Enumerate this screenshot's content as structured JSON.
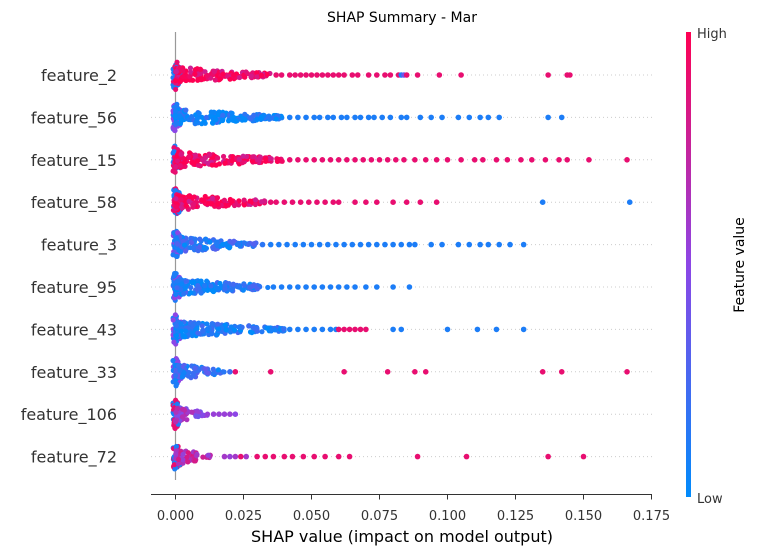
{
  "chart_data": {
    "type": "scatter",
    "title": "SHAP Summary - Mar",
    "xlabel": "SHAP value (impact on model output)",
    "xlim": [
      -0.009,
      0.175
    ],
    "xticks": [
      "0.000",
      "0.025",
      "0.050",
      "0.075",
      "0.100",
      "0.125",
      "0.150",
      "0.175"
    ],
    "xtick_values": [
      0,
      0.025,
      0.05,
      0.075,
      0.1,
      0.125,
      0.15,
      0.175
    ],
    "colorbar": {
      "label": "Feature value",
      "high": "High",
      "low": "Low",
      "low_color": "#008bfb",
      "high_color": "#ff0052"
    },
    "features": [
      {
        "name": "feature_2",
        "dense_max": 0.035,
        "dense_color": 0.95,
        "points": [
          [
            0.037,
            0.9
          ],
          [
            0.039,
            0.9
          ],
          [
            0.042,
            0.9
          ],
          [
            0.044,
            0.9
          ],
          [
            0.046,
            0.9
          ],
          [
            0.048,
            0.9
          ],
          [
            0.05,
            0.9
          ],
          [
            0.052,
            0.9
          ],
          [
            0.054,
            0.9
          ],
          [
            0.056,
            0.9
          ],
          [
            0.058,
            0.9
          ],
          [
            0.06,
            0.9
          ],
          [
            0.062,
            0.9
          ],
          [
            0.065,
            0.9
          ],
          [
            0.067,
            0.9
          ],
          [
            0.071,
            0.9
          ],
          [
            0.074,
            0.9
          ],
          [
            0.077,
            0.9
          ],
          [
            0.079,
            0.9
          ],
          [
            0.082,
            0.9
          ],
          [
            0.083,
            0.1
          ],
          [
            0.084,
            0.4
          ],
          [
            0.085,
            0.9
          ],
          [
            0.089,
            0.9
          ],
          [
            0.097,
            0.9
          ],
          [
            0.105,
            0.9
          ],
          [
            0.137,
            0.9
          ],
          [
            0.144,
            0.9
          ],
          [
            0.145,
            0.9
          ]
        ]
      },
      {
        "name": "feature_56",
        "dense_max": 0.04,
        "dense_color": 0.05,
        "points": [
          [
            0.042,
            0.1
          ],
          [
            0.045,
            0.1
          ],
          [
            0.048,
            0.1
          ],
          [
            0.051,
            0.1
          ],
          [
            0.053,
            0.1
          ],
          [
            0.056,
            0.1
          ],
          [
            0.058,
            0.1
          ],
          [
            0.061,
            0.1
          ],
          [
            0.063,
            0.1
          ],
          [
            0.066,
            0.1
          ],
          [
            0.068,
            0.1
          ],
          [
            0.071,
            0.1
          ],
          [
            0.073,
            0.1
          ],
          [
            0.076,
            0.1
          ],
          [
            0.079,
            0.1
          ],
          [
            0.083,
            0.1
          ],
          [
            0.085,
            0.1
          ],
          [
            0.09,
            0.1
          ],
          [
            0.094,
            0.1
          ],
          [
            0.098,
            0.1
          ],
          [
            0.104,
            0.1
          ],
          [
            0.108,
            0.1
          ],
          [
            0.112,
            0.1
          ],
          [
            0.115,
            0.1
          ],
          [
            0.119,
            0.1
          ],
          [
            0.137,
            0.1
          ],
          [
            0.142,
            0.1
          ]
        ]
      },
      {
        "name": "feature_15",
        "dense_max": 0.04,
        "dense_color": 0.95,
        "points": [
          [
            0.042,
            0.9
          ],
          [
            0.045,
            0.9
          ],
          [
            0.048,
            0.9
          ],
          [
            0.051,
            0.9
          ],
          [
            0.054,
            0.9
          ],
          [
            0.057,
            0.9
          ],
          [
            0.06,
            0.9
          ],
          [
            0.063,
            0.9
          ],
          [
            0.066,
            0.9
          ],
          [
            0.069,
            0.9
          ],
          [
            0.072,
            0.9
          ],
          [
            0.075,
            0.9
          ],
          [
            0.078,
            0.9
          ],
          [
            0.081,
            0.9
          ],
          [
            0.084,
            0.9
          ],
          [
            0.088,
            0.9
          ],
          [
            0.092,
            0.9
          ],
          [
            0.096,
            0.9
          ],
          [
            0.1,
            0.9
          ],
          [
            0.105,
            0.9
          ],
          [
            0.11,
            0.9
          ],
          [
            0.113,
            0.9
          ],
          [
            0.118,
            0.9
          ],
          [
            0.122,
            0.9
          ],
          [
            0.127,
            0.9
          ],
          [
            0.131,
            0.9
          ],
          [
            0.136,
            0.9
          ],
          [
            0.141,
            0.9
          ],
          [
            0.144,
            0.9
          ],
          [
            0.152,
            0.9
          ],
          [
            0.166,
            0.9
          ]
        ]
      },
      {
        "name": "feature_58",
        "dense_max": 0.033,
        "dense_color": 0.95,
        "points": [
          [
            0.035,
            0.9
          ],
          [
            0.037,
            0.9
          ],
          [
            0.04,
            0.9
          ],
          [
            0.043,
            0.9
          ],
          [
            0.046,
            0.9
          ],
          [
            0.049,
            0.9
          ],
          [
            0.052,
            0.9
          ],
          [
            0.055,
            0.9
          ],
          [
            0.058,
            0.9
          ],
          [
            0.06,
            0.9
          ],
          [
            0.066,
            0.9
          ],
          [
            0.07,
            0.9
          ],
          [
            0.074,
            0.9
          ],
          [
            0.08,
            0.9
          ],
          [
            0.085,
            0.9
          ],
          [
            0.09,
            0.9
          ],
          [
            0.096,
            0.9
          ],
          [
            0.135,
            0.1
          ],
          [
            0.167,
            0.1
          ]
        ]
      },
      {
        "name": "feature_3",
        "dense_max": 0.03,
        "dense_color": 0.15,
        "points": [
          [
            0.032,
            0.15
          ],
          [
            0.035,
            0.1
          ],
          [
            0.038,
            0.1
          ],
          [
            0.041,
            0.1
          ],
          [
            0.044,
            0.1
          ],
          [
            0.047,
            0.1
          ],
          [
            0.05,
            0.1
          ],
          [
            0.053,
            0.1
          ],
          [
            0.056,
            0.1
          ],
          [
            0.059,
            0.1
          ],
          [
            0.062,
            0.1
          ],
          [
            0.065,
            0.1
          ],
          [
            0.068,
            0.1
          ],
          [
            0.071,
            0.1
          ],
          [
            0.074,
            0.1
          ],
          [
            0.077,
            0.1
          ],
          [
            0.08,
            0.1
          ],
          [
            0.083,
            0.1
          ],
          [
            0.086,
            0.1
          ],
          [
            0.088,
            0.1
          ],
          [
            0.094,
            0.1
          ],
          [
            0.098,
            0.1
          ],
          [
            0.104,
            0.1
          ],
          [
            0.108,
            0.1
          ],
          [
            0.112,
            0.1
          ],
          [
            0.115,
            0.1
          ],
          [
            0.119,
            0.1
          ],
          [
            0.123,
            0.1
          ],
          [
            0.128,
            0.1
          ]
        ]
      },
      {
        "name": "feature_95",
        "dense_max": 0.034,
        "dense_color": 0.1,
        "points": [
          [
            0.036,
            0.1
          ],
          [
            0.039,
            0.1
          ],
          [
            0.042,
            0.1
          ],
          [
            0.045,
            0.1
          ],
          [
            0.048,
            0.1
          ],
          [
            0.051,
            0.1
          ],
          [
            0.054,
            0.1
          ],
          [
            0.057,
            0.1
          ],
          [
            0.06,
            0.1
          ],
          [
            0.063,
            0.1
          ],
          [
            0.066,
            0.1
          ],
          [
            0.07,
            0.1
          ],
          [
            0.074,
            0.1
          ],
          [
            0.08,
            0.1
          ],
          [
            0.086,
            0.1
          ]
        ]
      },
      {
        "name": "feature_43",
        "dense_max": 0.04,
        "dense_color": 0.1,
        "points": [
          [
            0.042,
            0.1
          ],
          [
            0.045,
            0.1
          ],
          [
            0.048,
            0.1
          ],
          [
            0.051,
            0.1
          ],
          [
            0.054,
            0.1
          ],
          [
            0.057,
            0.1
          ],
          [
            0.059,
            0.1
          ],
          [
            0.06,
            0.9
          ],
          [
            0.062,
            0.9
          ],
          [
            0.064,
            0.9
          ],
          [
            0.066,
            0.9
          ],
          [
            0.068,
            0.9
          ],
          [
            0.07,
            0.9
          ],
          [
            0.08,
            0.1
          ],
          [
            0.083,
            0.1
          ],
          [
            0.1,
            0.1
          ],
          [
            0.111,
            0.1
          ],
          [
            0.118,
            0.1
          ],
          [
            0.128,
            0.1
          ]
        ]
      },
      {
        "name": "feature_33",
        "dense_max": 0.018,
        "dense_color": 0.2,
        "points": [
          [
            0.02,
            0.2
          ],
          [
            0.022,
            0.9
          ],
          [
            0.035,
            0.9
          ],
          [
            0.062,
            0.9
          ],
          [
            0.078,
            0.9
          ],
          [
            0.088,
            0.9
          ],
          [
            0.092,
            0.9
          ],
          [
            0.135,
            0.9
          ],
          [
            0.142,
            0.9
          ],
          [
            0.166,
            0.9
          ]
        ]
      },
      {
        "name": "feature_106",
        "dense_max": 0.012,
        "dense_color": 0.55,
        "points": [
          [
            0.014,
            0.55
          ],
          [
            0.016,
            0.55
          ],
          [
            0.018,
            0.55
          ],
          [
            0.02,
            0.55
          ],
          [
            0.022,
            0.5
          ]
        ]
      },
      {
        "name": "feature_72",
        "dense_max": 0.013,
        "dense_color": 0.7,
        "points": [
          [
            0.018,
            0.6
          ],
          [
            0.02,
            0.55
          ],
          [
            0.022,
            0.6
          ],
          [
            0.024,
            0.9
          ],
          [
            0.026,
            0.6
          ],
          [
            0.03,
            0.9
          ],
          [
            0.033,
            0.9
          ],
          [
            0.036,
            0.9
          ],
          [
            0.04,
            0.9
          ],
          [
            0.043,
            0.9
          ],
          [
            0.047,
            0.9
          ],
          [
            0.051,
            0.9
          ],
          [
            0.055,
            0.9
          ],
          [
            0.06,
            0.9
          ],
          [
            0.064,
            0.9
          ],
          [
            0.089,
            0.9
          ],
          [
            0.107,
            0.9
          ],
          [
            0.137,
            0.9
          ],
          [
            0.15,
            0.9
          ]
        ]
      }
    ]
  }
}
